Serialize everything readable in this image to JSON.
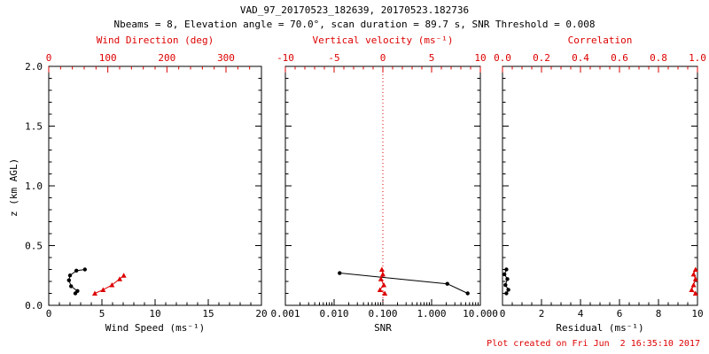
{
  "title": "VAD_97_20170523_182639, 20170523.182736",
  "subtitle": "Nbeams = 8, Elevation angle = 70.0°, scan duration = 89.7 s, SNR Threshold = 0.008",
  "footer": "Plot created on Fri Jun  2 16:35:10 2017",
  "colors": {
    "axis": "#000000",
    "accent": "#dd0000",
    "background": "#ffffff"
  },
  "y_axis": {
    "label": "z (km AGL)",
    "lim": [
      0,
      2
    ],
    "ticks": [
      0,
      0.5,
      1,
      1.5,
      2
    ],
    "tick_labels": [
      "0.0",
      "0.5",
      "1.0",
      "1.5",
      "2.0"
    ]
  },
  "chart_data": [
    {
      "type": "line",
      "id": "wind-panel",
      "xlabel": "Wind Speed (ms⁻¹)",
      "xscale": "linear",
      "xlim": [
        0,
        20
      ],
      "xticks": [
        0,
        5,
        10,
        15,
        20
      ],
      "xtick_labels": [
        "0",
        "5",
        "10",
        "15",
        "20"
      ],
      "top_label": "Wind Direction (deg)",
      "top_xlim": [
        0,
        360
      ],
      "top_ticks": [
        0,
        100,
        200,
        300
      ],
      "top_tick_labels": [
        "0",
        "100",
        "200",
        "300"
      ],
      "ylabel": "z (km AGL)",
      "ylim": [
        0,
        2
      ],
      "series": [
        {
          "name": "wind-speed",
          "axis": "bottom",
          "color": "#000000",
          "marker": "circle",
          "points": [
            [
              3.4,
              0.3
            ],
            [
              2.6,
              0.29
            ],
            [
              2.0,
              0.25
            ],
            [
              1.9,
              0.21
            ],
            [
              2.1,
              0.16
            ],
            [
              2.7,
              0.12
            ],
            [
              2.5,
              0.1
            ]
          ]
        },
        {
          "name": "wind-direction",
          "axis": "top",
          "color": "#dd0000",
          "marker": "triangle",
          "points": [
            [
              127,
              0.25
            ],
            [
              120,
              0.22
            ],
            [
              107,
              0.17
            ],
            [
              92,
              0.13
            ],
            [
              78,
              0.1
            ]
          ]
        }
      ]
    },
    {
      "type": "line",
      "id": "snr-panel",
      "xlabel": "SNR",
      "xscale": "log",
      "xlim": [
        0.001,
        10
      ],
      "xticks": [
        0.001,
        0.01,
        0.1,
        1,
        10
      ],
      "xtick_labels": [
        "0.001",
        "0.010",
        "0.100",
        "1.000",
        "10.000"
      ],
      "top_label": "Vertical velocity (ms⁻¹)",
      "top_xlim": [
        -10,
        10
      ],
      "top_ticks": [
        -10,
        -5,
        0,
        5,
        10
      ],
      "top_tick_labels": [
        "-10",
        "-5",
        "0",
        "5",
        "10"
      ],
      "ylim": [
        0,
        2
      ],
      "refline": {
        "axis": "top",
        "x": 0,
        "color": "#dd0000",
        "style": "dotted"
      },
      "series": [
        {
          "name": "snr",
          "axis": "bottom",
          "color": "#000000",
          "marker": "circle",
          "points": [
            [
              0.013,
              0.27
            ],
            [
              2.1,
              0.18
            ],
            [
              5.5,
              0.1
            ]
          ]
        },
        {
          "name": "vertical-velocity",
          "axis": "top",
          "color": "#dd0000",
          "marker": "triangle",
          "points": [
            [
              -0.1,
              0.3
            ],
            [
              0.0,
              0.26
            ],
            [
              -0.2,
              0.22
            ],
            [
              0.1,
              0.17
            ],
            [
              -0.3,
              0.13
            ],
            [
              0.2,
              0.1
            ]
          ]
        }
      ]
    },
    {
      "type": "line",
      "id": "residual-panel",
      "xlabel": "Residual (ms⁻¹)",
      "xscale": "linear",
      "xlim": [
        0,
        10
      ],
      "xticks": [
        0,
        2,
        4,
        6,
        8,
        10
      ],
      "xtick_labels": [
        "0",
        "2",
        "4",
        "6",
        "8",
        "10"
      ],
      "top_label": "Correlation",
      "top_xlim": [
        0,
        1
      ],
      "top_ticks": [
        0,
        0.2,
        0.4,
        0.6,
        0.8,
        1
      ],
      "top_tick_labels": [
        "0.0",
        "0.2",
        "0.4",
        "0.6",
        "0.8",
        "1.0"
      ],
      "ylim": [
        0,
        2
      ],
      "series": [
        {
          "name": "residual",
          "axis": "bottom",
          "color": "#000000",
          "marker": "circle",
          "points": [
            [
              0.2,
              0.3
            ],
            [
              0.1,
              0.26
            ],
            [
              0.25,
              0.22
            ],
            [
              0.15,
              0.17
            ],
            [
              0.3,
              0.13
            ],
            [
              0.2,
              0.1
            ]
          ]
        },
        {
          "name": "correlation",
          "axis": "top",
          "color": "#dd0000",
          "marker": "triangle",
          "points": [
            [
              0.99,
              0.3
            ],
            [
              0.98,
              0.26
            ],
            [
              0.99,
              0.22
            ],
            [
              0.98,
              0.17
            ],
            [
              0.97,
              0.13
            ],
            [
              0.99,
              0.1
            ]
          ]
        }
      ]
    }
  ]
}
